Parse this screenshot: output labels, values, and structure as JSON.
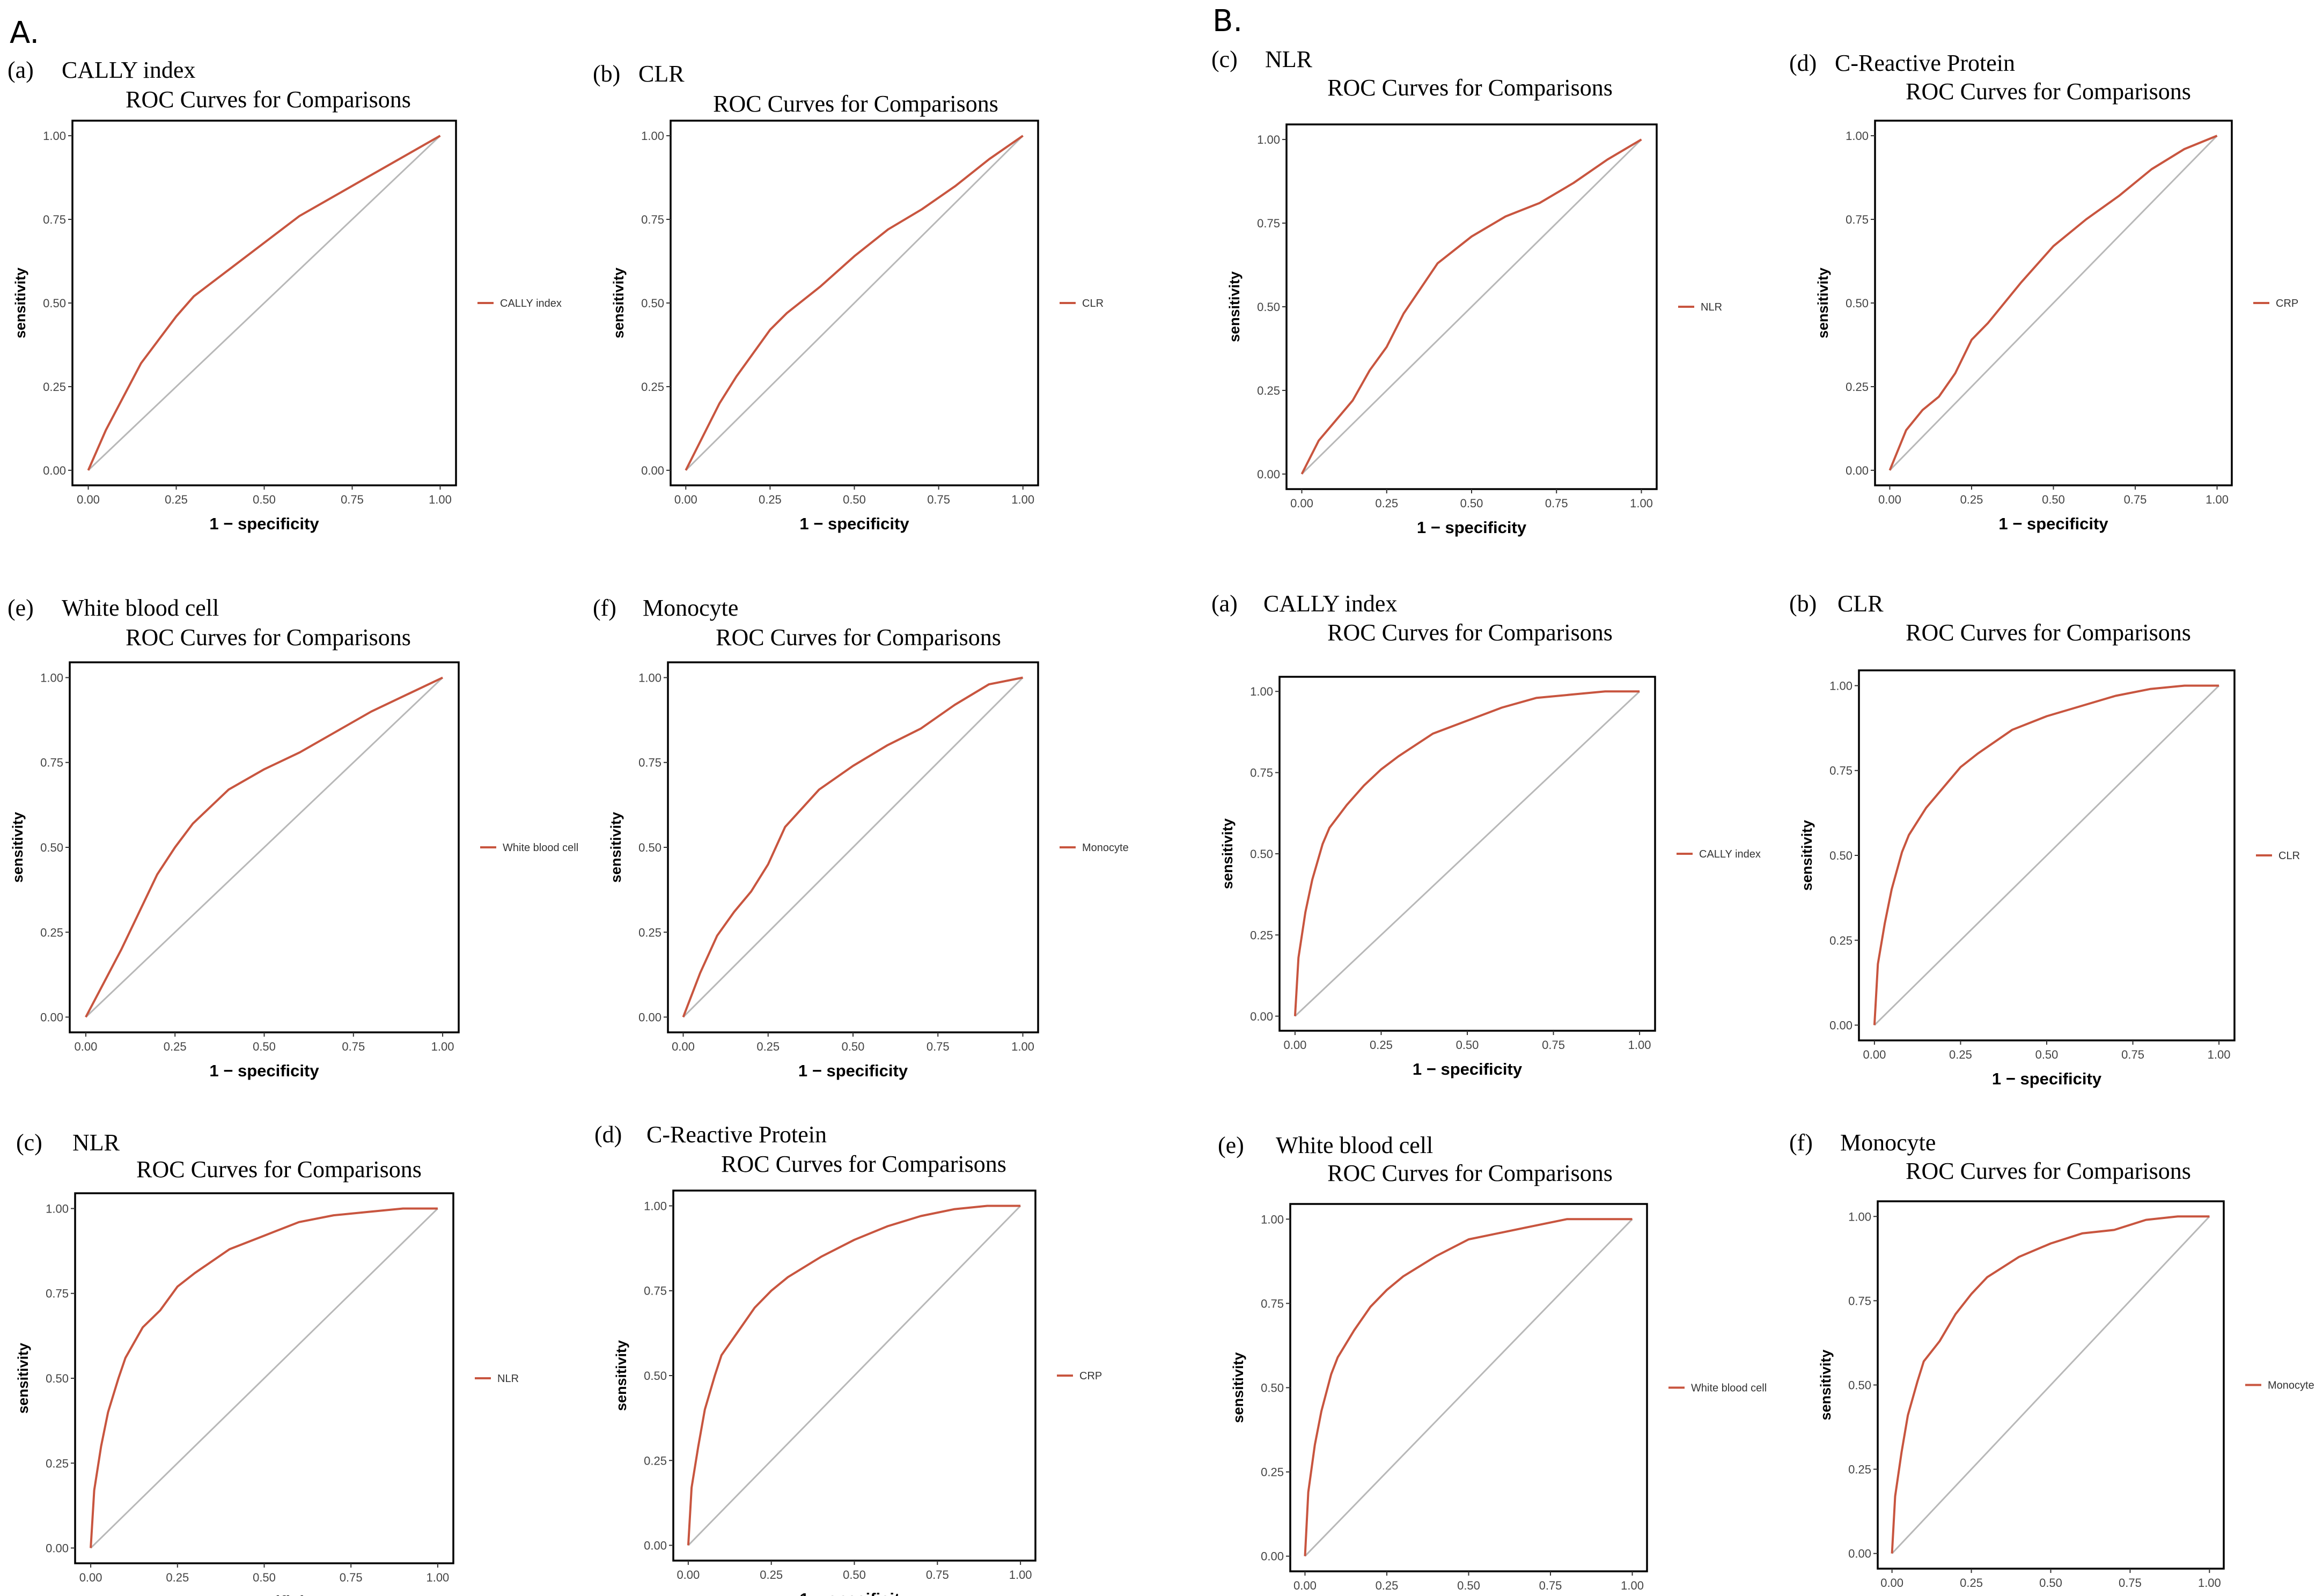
{
  "figure": {
    "section_labels": [
      "A.",
      "B."
    ]
  },
  "colors": {
    "roc_line": "#c8553f",
    "diagonal": "#b8b8b8",
    "frame": "#000000"
  },
  "axis_common": {
    "xlabel": "1 − specificity",
    "ylabel": "sensitivity",
    "ticks": [
      "0.00",
      "0.25",
      "0.50",
      "0.75",
      "1.00"
    ]
  },
  "chart_data": [
    {
      "type": "line",
      "section": "A.",
      "panel_tag": "(a)",
      "panel_name": "CALLY index",
      "title": "ROC Curves for Comparisons",
      "legend": "CALLY index",
      "xlabel": "1 − specificity",
      "ylabel": "sensitivity",
      "xlim": [
        0,
        1
      ],
      "ylim": [
        0,
        1
      ],
      "x": [
        0,
        0.05,
        0.1,
        0.15,
        0.2,
        0.25,
        0.3,
        0.4,
        0.5,
        0.6,
        0.7,
        0.8,
        0.9,
        1.0
      ],
      "y": [
        0,
        0.12,
        0.22,
        0.32,
        0.39,
        0.46,
        0.52,
        0.6,
        0.68,
        0.76,
        0.82,
        0.88,
        0.94,
        1.0
      ]
    },
    {
      "type": "line",
      "section": "A.",
      "panel_tag": "(b)",
      "panel_name": "CLR",
      "title": "ROC Curves for Comparisons",
      "legend": "CLR",
      "xlabel": "1 − specificity",
      "ylabel": "sensitivity",
      "xlim": [
        0,
        1
      ],
      "ylim": [
        0,
        1
      ],
      "x": [
        0,
        0.05,
        0.1,
        0.15,
        0.2,
        0.25,
        0.3,
        0.4,
        0.5,
        0.6,
        0.7,
        0.8,
        0.9,
        1.0
      ],
      "y": [
        0,
        0.1,
        0.2,
        0.28,
        0.35,
        0.42,
        0.47,
        0.55,
        0.64,
        0.72,
        0.78,
        0.85,
        0.93,
        1.0
      ]
    },
    {
      "type": "line",
      "section": "A.",
      "panel_tag": "(c)",
      "panel_name": "NLR",
      "title": "ROC Curves for Comparisons",
      "legend": "NLR",
      "xlabel": "1 − specificity",
      "ylabel": "sensitivity",
      "xlim": [
        0,
        1
      ],
      "ylim": [
        0,
        1
      ],
      "x": [
        0,
        0.05,
        0.1,
        0.15,
        0.2,
        0.25,
        0.3,
        0.4,
        0.5,
        0.6,
        0.7,
        0.8,
        0.9,
        1.0
      ],
      "y": [
        0,
        0.1,
        0.16,
        0.22,
        0.31,
        0.38,
        0.48,
        0.63,
        0.71,
        0.77,
        0.81,
        0.87,
        0.94,
        1.0
      ]
    },
    {
      "type": "line",
      "section": "A.",
      "panel_tag": "(d)",
      "panel_name": "C-Reactive Protein",
      "title": "ROC Curves for Comparisons",
      "legend": "CRP",
      "xlabel": "1 − specificity",
      "ylabel": "sensitivity",
      "xlim": [
        0,
        1
      ],
      "ylim": [
        0,
        1
      ],
      "x": [
        0,
        0.05,
        0.1,
        0.15,
        0.2,
        0.25,
        0.3,
        0.4,
        0.5,
        0.6,
        0.7,
        0.8,
        0.9,
        1.0
      ],
      "y": [
        0,
        0.12,
        0.18,
        0.22,
        0.29,
        0.39,
        0.44,
        0.56,
        0.67,
        0.75,
        0.82,
        0.9,
        0.96,
        1.0
      ]
    },
    {
      "type": "line",
      "section": "A.",
      "panel_tag": "(e)",
      "panel_name": "White blood cell",
      "title": "ROC Curves for Comparisons",
      "legend": "White blood cell",
      "xlabel": "1 − specificity",
      "ylabel": "sensitivity",
      "xlim": [
        0,
        1
      ],
      "ylim": [
        0,
        1
      ],
      "x": [
        0,
        0.05,
        0.1,
        0.15,
        0.2,
        0.25,
        0.3,
        0.4,
        0.5,
        0.6,
        0.7,
        0.8,
        0.9,
        1.0
      ],
      "y": [
        0,
        0.1,
        0.2,
        0.31,
        0.42,
        0.5,
        0.57,
        0.67,
        0.73,
        0.78,
        0.84,
        0.9,
        0.95,
        1.0
      ]
    },
    {
      "type": "line",
      "section": "A.",
      "panel_tag": "(f)",
      "panel_name": "Monocyte",
      "title": "ROC Curves for Comparisons",
      "legend": "Monocyte",
      "xlabel": "1 − specificity",
      "ylabel": "sensitivity",
      "xlim": [
        0,
        1
      ],
      "ylim": [
        0,
        1
      ],
      "x": [
        0,
        0.05,
        0.1,
        0.15,
        0.2,
        0.25,
        0.3,
        0.4,
        0.5,
        0.6,
        0.7,
        0.8,
        0.9,
        1.0
      ],
      "y": [
        0,
        0.13,
        0.24,
        0.31,
        0.37,
        0.45,
        0.56,
        0.67,
        0.74,
        0.8,
        0.85,
        0.92,
        0.98,
        1.0
      ]
    },
    {
      "type": "line",
      "section": "B.",
      "panel_tag": "(a)",
      "panel_name": "CALLY index",
      "title": "ROC Curves for Comparisons",
      "legend": "CALLY index",
      "xlabel": "1 − specificity",
      "ylabel": "sensitivity",
      "xlim": [
        0,
        1
      ],
      "ylim": [
        0,
        1
      ],
      "x": [
        0,
        0.01,
        0.03,
        0.05,
        0.08,
        0.1,
        0.15,
        0.2,
        0.25,
        0.3,
        0.4,
        0.5,
        0.6,
        0.7,
        0.8,
        0.9,
        1.0
      ],
      "y": [
        0,
        0.18,
        0.32,
        0.42,
        0.53,
        0.58,
        0.65,
        0.71,
        0.76,
        0.8,
        0.87,
        0.91,
        0.95,
        0.98,
        0.99,
        1.0,
        1.0
      ]
    },
    {
      "type": "line",
      "section": "B.",
      "panel_tag": "(b)",
      "panel_name": "CLR",
      "title": "ROC Curves for Comparisons",
      "legend": "CLR",
      "xlabel": "1 − specificity",
      "ylabel": "sensitivity",
      "xlim": [
        0,
        1
      ],
      "ylim": [
        0,
        1
      ],
      "x": [
        0,
        0.01,
        0.03,
        0.05,
        0.08,
        0.1,
        0.15,
        0.2,
        0.25,
        0.3,
        0.4,
        0.5,
        0.6,
        0.7,
        0.8,
        0.9,
        1.0
      ],
      "y": [
        0,
        0.18,
        0.3,
        0.4,
        0.51,
        0.56,
        0.64,
        0.7,
        0.76,
        0.8,
        0.87,
        0.91,
        0.94,
        0.97,
        0.99,
        1.0,
        1.0
      ]
    },
    {
      "type": "line",
      "section": "B.",
      "panel_tag": "(c)",
      "panel_name": "NLR",
      "title": "ROC Curves for Comparisons",
      "legend": "NLR",
      "xlabel": "1 − specificity",
      "ylabel": "sensitivity",
      "xlim": [
        0,
        1
      ],
      "ylim": [
        0,
        1
      ],
      "x": [
        0,
        0.01,
        0.03,
        0.05,
        0.08,
        0.1,
        0.15,
        0.2,
        0.25,
        0.3,
        0.4,
        0.5,
        0.6,
        0.7,
        0.8,
        0.9,
        1.0
      ],
      "y": [
        0,
        0.17,
        0.3,
        0.4,
        0.5,
        0.56,
        0.65,
        0.7,
        0.77,
        0.81,
        0.88,
        0.92,
        0.96,
        0.98,
        0.99,
        1.0,
        1.0
      ]
    },
    {
      "type": "line",
      "section": "B.",
      "panel_tag": "(d)",
      "panel_name": "C-Reactive Protein",
      "title": "ROC Curves for Comparisons",
      "legend": "CRP",
      "xlabel": "1 − specificity",
      "ylabel": "sensitivity",
      "xlim": [
        0,
        1
      ],
      "ylim": [
        0,
        1
      ],
      "x": [
        0,
        0.01,
        0.03,
        0.05,
        0.08,
        0.1,
        0.15,
        0.2,
        0.25,
        0.3,
        0.4,
        0.5,
        0.6,
        0.7,
        0.8,
        0.9,
        1.0
      ],
      "y": [
        0,
        0.17,
        0.29,
        0.4,
        0.5,
        0.56,
        0.63,
        0.7,
        0.75,
        0.79,
        0.85,
        0.9,
        0.94,
        0.97,
        0.99,
        1.0,
        1.0
      ]
    },
    {
      "type": "line",
      "section": "B.",
      "panel_tag": "(e)",
      "panel_name": "White blood cell",
      "title": "ROC Curves for Comparisons",
      "legend": "White blood cell",
      "xlabel": "1 − specificity",
      "ylabel": "sensitivity",
      "xlim": [
        0,
        1
      ],
      "ylim": [
        0,
        1
      ],
      "x": [
        0,
        0.01,
        0.03,
        0.05,
        0.08,
        0.1,
        0.15,
        0.2,
        0.25,
        0.3,
        0.4,
        0.5,
        0.6,
        0.7,
        0.8,
        0.9,
        1.0
      ],
      "y": [
        0,
        0.19,
        0.33,
        0.43,
        0.54,
        0.59,
        0.67,
        0.74,
        0.79,
        0.83,
        0.89,
        0.94,
        0.96,
        0.98,
        1.0,
        1.0,
        1.0
      ]
    },
    {
      "type": "line",
      "section": "B.",
      "panel_tag": "(f)",
      "panel_name": "Monocyte",
      "title": "ROC Curves for Comparisons",
      "legend": "Monocyte",
      "xlabel": "1 − specificity",
      "ylabel": "sensitivity",
      "xlim": [
        0,
        1
      ],
      "ylim": [
        0,
        1
      ],
      "x": [
        0,
        0.01,
        0.03,
        0.05,
        0.08,
        0.1,
        0.15,
        0.2,
        0.25,
        0.3,
        0.4,
        0.5,
        0.6,
        0.7,
        0.8,
        0.9,
        1.0
      ],
      "y": [
        0,
        0.17,
        0.3,
        0.41,
        0.51,
        0.57,
        0.63,
        0.71,
        0.77,
        0.82,
        0.88,
        0.92,
        0.95,
        0.96,
        0.99,
        1.0,
        1.0
      ]
    }
  ]
}
